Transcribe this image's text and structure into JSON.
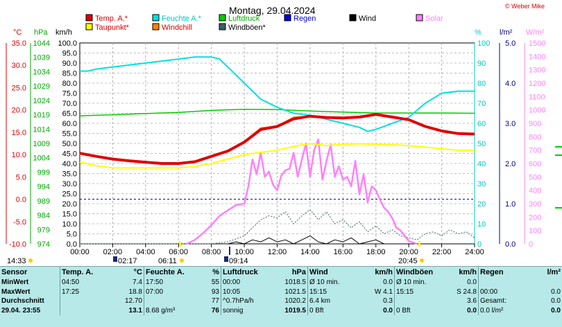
{
  "title": "Montag, 29.04.2024",
  "copyright": "© Weber Mike",
  "legend": [
    {
      "label": "Temp. A.*",
      "color": "#e00000",
      "text_color": "#e00000"
    },
    {
      "label": "Feuchte A.*",
      "color": "#00e0e0",
      "text_color": "#00c8c8"
    },
    {
      "label": "Luftdruck",
      "color": "#00cc00",
      "text_color": "#00aa00"
    },
    {
      "label": "Regen",
      "color": "#0000e0",
      "text_color": "#0000e0"
    },
    {
      "label": "Wind",
      "color": "#000000",
      "text_color": "#000000"
    },
    {
      "label": "Solar",
      "color": "#ff80ff",
      "text_color": "#ff80ff"
    },
    {
      "label": "Taupunkt*",
      "color": "#ffff00",
      "text_color": "#d40000"
    },
    {
      "label": "Windchill",
      "color": "#ff8000",
      "text_color": "#d40000"
    },
    {
      "label": "Windböen*",
      "color": "#406060",
      "text_color": "#000000"
    }
  ],
  "axis_units": {
    "temp": "°C",
    "press": "hPa",
    "wind": "km/h",
    "hum": "%",
    "rain": "l/m²",
    "solar": "W/m²"
  },
  "colors": {
    "temp": "#e00000",
    "press": "#00aa00",
    "wind": "#000000",
    "hum": "#00c8c8",
    "rain": "#000080",
    "solar": "#ff80ff",
    "dew": "#ffff00",
    "chill": "#ff8000",
    "gust": "#406060"
  },
  "chart_data": {
    "type": "line",
    "title": "Montag, 29.04.2024",
    "x_ticks": [
      "00:00",
      "02:00",
      "04:00",
      "06:00",
      "08:00",
      "10:00",
      "12:00",
      "14:00",
      "16:00",
      "18:00",
      "20:00",
      "22:00",
      "24:00"
    ],
    "xlim": [
      0,
      24
    ],
    "axes": {
      "temp": {
        "label": "°C",
        "min": -10,
        "max": 35,
        "ticks": [
          "35.0",
          "30.0",
          "25.0",
          "20.0",
          "15.0",
          "10.0",
          "5.0",
          "0.0",
          "-5.0",
          "-10.0"
        ]
      },
      "press": {
        "label": "hPa",
        "min": 974,
        "max": 1044,
        "ticks": [
          "1044",
          "1039",
          "1034",
          "1029",
          "1024",
          "1019",
          "1014",
          "1009",
          "1004",
          "999",
          "994",
          "989",
          "984",
          "979",
          "974"
        ]
      },
      "wind": {
        "label": "km/h",
        "min": 0,
        "max": 100,
        "ticks": [
          "100.0",
          "95.0",
          "90.0",
          "85.0",
          "80.0",
          "75.0",
          "70.0",
          "65.0",
          "60.0",
          "55.0",
          "50.0",
          "45.0",
          "40.0",
          "35.0",
          "30.0",
          "25.0",
          "20.0",
          "15.0",
          "10.0",
          "5.0",
          "0.0"
        ]
      },
      "hum": {
        "label": "%",
        "min": 0,
        "max": 100,
        "ticks": [
          "100",
          "90",
          "80",
          "70",
          "60",
          "50",
          "40",
          "30",
          "20",
          "10",
          "0"
        ]
      },
      "rain": {
        "label": "l/m²",
        "min": 0,
        "max": 5,
        "ticks": [
          "5.0",
          "4.0",
          "3.0",
          "2.0",
          "1.0",
          "0.0"
        ]
      },
      "solar": {
        "label": "W/m²",
        "min": 0,
        "max": 1500,
        "ticks": [
          "1500",
          "1400",
          "1300",
          "1200",
          "1100",
          "1000",
          "900",
          "800",
          "700",
          "600",
          "500",
          "400",
          "300",
          "200",
          "100",
          "0"
        ]
      }
    },
    "series": [
      {
        "name": "Temp. A.*",
        "axis": "temp",
        "color": "#e00000",
        "width": 4,
        "x": [
          0,
          1,
          2,
          3,
          4,
          5,
          6,
          7,
          8,
          9,
          10,
          11,
          12,
          13,
          14,
          15,
          16,
          17,
          18,
          19,
          20,
          21,
          22,
          23,
          24
        ],
        "y": [
          10.3,
          9.6,
          9.0,
          8.6,
          8.3,
          8.0,
          8.0,
          8.4,
          9.6,
          10.8,
          12.8,
          15.6,
          16.3,
          18.0,
          18.6,
          18.3,
          18.2,
          18.4,
          19.0,
          18.4,
          17.8,
          16.3,
          15.3,
          14.7,
          14.6
        ]
      },
      {
        "name": "Windchill",
        "axis": "temp",
        "color": "#ff8000",
        "width": 1.5,
        "x": [
          0,
          1,
          2,
          3,
          4,
          5,
          6,
          7,
          8,
          9,
          10,
          11,
          12,
          13,
          14,
          15,
          16,
          17,
          18,
          19,
          20,
          21,
          22,
          23,
          24
        ],
        "y": [
          10.3,
          9.6,
          9.0,
          8.6,
          8.3,
          8.0,
          8.0,
          8.4,
          9.6,
          10.8,
          12.9,
          16.0,
          16.4,
          18.4,
          18.6,
          18.3,
          18.2,
          18.5,
          19.0,
          18.4,
          17.8,
          16.3,
          15.3,
          14.7,
          14.6
        ]
      },
      {
        "name": "Taupunkt*",
        "axis": "temp",
        "color": "#ffff00",
        "width": 2,
        "x": [
          0,
          1,
          2,
          3,
          4,
          5,
          6,
          7,
          8,
          9,
          10,
          11,
          12,
          13,
          14,
          15,
          16,
          17,
          18,
          19,
          20,
          21,
          22,
          23,
          24
        ],
        "y": [
          8.3,
          7.5,
          7.0,
          7.0,
          7.0,
          7.0,
          7.0,
          7.3,
          8.0,
          9.0,
          10.0,
          10.5,
          11.0,
          11.8,
          12.5,
          12.0,
          12.3,
          12.4,
          12.3,
          12.2,
          12.0,
          11.7,
          11.3,
          11.0,
          11.0
        ]
      },
      {
        "name": "Feuchte A.*",
        "axis": "hum",
        "color": "#00e0e0",
        "width": 2,
        "x": [
          0,
          0.5,
          1,
          2,
          3,
          4,
          5,
          6,
          7,
          7.5,
          8,
          8.5,
          9,
          10,
          11,
          12,
          13,
          14,
          15,
          16,
          17,
          17.5,
          18,
          19,
          20,
          21,
          22,
          23,
          24
        ],
        "y": [
          86,
          86,
          87,
          88,
          89,
          90,
          91,
          92,
          93,
          93,
          93,
          92,
          88,
          80,
          72,
          68,
          65,
          64,
          62,
          60,
          58,
          56,
          57,
          60,
          63,
          70,
          75,
          76,
          76
        ]
      },
      {
        "name": "Luftdruck",
        "axis": "press",
        "color": "#00cc00",
        "width": 1.5,
        "x": [
          0,
          2,
          4,
          6,
          8,
          9,
          10,
          12,
          14,
          16,
          18,
          20,
          22,
          24
        ],
        "y": [
          1018.6,
          1019.0,
          1019.4,
          1019.8,
          1020.5,
          1020.7,
          1020.9,
          1020.8,
          1020.3,
          1019.9,
          1019.6,
          1019.6,
          1019.6,
          1019.5
        ]
      },
      {
        "name": "Solar",
        "axis": "solar",
        "color": "#ff80ff",
        "width": 2.5,
        "x": [
          6.5,
          7,
          7.5,
          8,
          8.5,
          9,
          9.5,
          10,
          10.25,
          10.5,
          10.75,
          11,
          11.25,
          11.5,
          11.75,
          12,
          12.25,
          12.5,
          12.75,
          13,
          13.25,
          13.5,
          13.75,
          14,
          14.25,
          14.5,
          14.75,
          15,
          15.25,
          15.5,
          15.75,
          16,
          16.25,
          16.5,
          16.75,
          17,
          17.25,
          17.5,
          17.75,
          18,
          18.25,
          18.5,
          18.75,
          19,
          19.25,
          19.5,
          19.75,
          20,
          20.5
        ],
        "y": [
          0,
          30,
          80,
          140,
          210,
          250,
          290,
          300,
          430,
          630,
          520,
          680,
          500,
          540,
          440,
          400,
          510,
          550,
          560,
          680,
          500,
          630,
          750,
          500,
          700,
          780,
          480,
          620,
          740,
          500,
          580,
          480,
          500,
          430,
          620,
          370,
          520,
          310,
          430,
          400,
          330,
          270,
          240,
          190,
          120,
          100,
          60,
          20,
          0
        ]
      },
      {
        "name": "Windböen*",
        "axis": "wind",
        "color": "#406060",
        "width": 1,
        "dash": "2,2",
        "x": [
          0,
          6,
          8,
          9,
          10,
          10.5,
          11,
          11.5,
          12,
          12.5,
          13,
          13.5,
          14,
          14.5,
          15,
          15.5,
          16,
          16.5,
          17,
          17.5,
          18,
          18.5,
          19,
          19.5,
          20,
          20.5,
          21,
          21.5,
          22,
          22.5,
          23,
          23.5,
          24
        ],
        "y": [
          0,
          0,
          0,
          1,
          4,
          8,
          12,
          14,
          13,
          16,
          10,
          14,
          17,
          12,
          16,
          10,
          12,
          8,
          11,
          6,
          9,
          5,
          7,
          4,
          3,
          2,
          5,
          6,
          4,
          7,
          5,
          6,
          3
        ]
      },
      {
        "name": "Wind",
        "axis": "wind",
        "color": "#000000",
        "width": 1,
        "x": [
          0,
          8,
          9,
          9.5,
          10,
          10.5,
          11,
          11.5,
          12,
          12.5,
          13,
          13.5,
          14,
          14.5,
          15,
          15.5,
          16,
          16.5,
          17,
          17.5,
          18,
          18.5,
          19,
          20,
          24
        ],
        "y": [
          0,
          0,
          0,
          1,
          0,
          2,
          1,
          3,
          1,
          2,
          0,
          2,
          4,
          1,
          0,
          2,
          1,
          3,
          0,
          1,
          2,
          0,
          0,
          0,
          0
        ]
      }
    ],
    "reference_lines": [
      {
        "axis": "temp",
        "value": 0,
        "color": "#0000c0",
        "dash": "3,3"
      }
    ],
    "grid": true
  },
  "sun_events": [
    {
      "label": "14:33",
      "kind": "moonrise"
    },
    {
      "label": "02:17",
      "kind": "moonphase"
    },
    {
      "label": "06:11",
      "kind": "sunrise"
    },
    {
      "label": "09:14",
      "kind": "moonset"
    },
    {
      "label": "20:45",
      "kind": "sunset"
    }
  ],
  "table": {
    "headers": [
      "Sensor",
      "Temp. A.",
      "°C",
      "Feuchte A.",
      "%",
      "Luftdruck",
      "hPa",
      "Wind",
      "km/h",
      "Windböen",
      "km/h",
      "Regen",
      "l/m²"
    ],
    "rows": [
      {
        "label": "MinWert",
        "cells": [
          "04:50",
          "7.4",
          "17:50",
          "55",
          "00:00",
          "1018.5",
          "Ø 10 min.",
          "0.0",
          "Ø 10 min.",
          "0.0",
          "",
          ""
        ]
      },
      {
        "label": "MaxWert",
        "cells": [
          "17:25",
          "18.8",
          "07:00",
          "93",
          "10:05",
          "1021.5",
          "15:15",
          "W 4.1",
          "15:15",
          "S 24.8",
          "00:00",
          "0.0"
        ]
      },
      {
        "label": "Durchschnitt",
        "cells": [
          "",
          "12.70",
          "",
          "77",
          "^0.7hPa/h",
          "1020.2",
          "6.4 km",
          "0.3",
          "",
          "3.6",
          "Gesamt:",
          "0.0"
        ]
      },
      {
        "label": "29.04. 23:55",
        "cells": [
          "",
          "13.1",
          "8.68 g/m³",
          "76",
          "sonnig",
          "1019.5",
          "0 Bft",
          "0.0",
          "0 Bft",
          "0.0",
          "0.0 l/m²",
          "0.0"
        ]
      }
    ]
  }
}
